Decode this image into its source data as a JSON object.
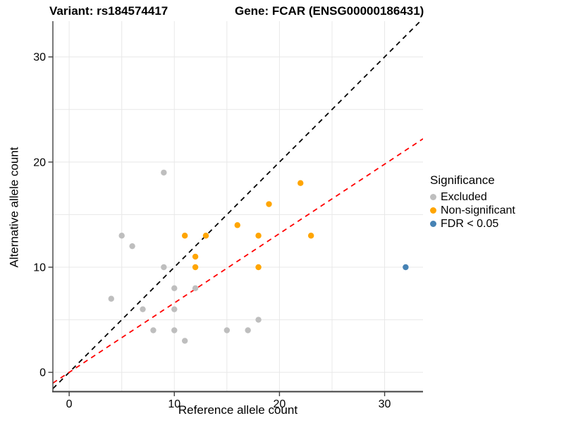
{
  "title": {
    "variant": "Variant: rs184574417",
    "gene": "Gene: FCAR (ENSG00000186431)"
  },
  "chart_data": {
    "type": "scatter",
    "xlabel": "Reference allele count",
    "ylabel": "Alternative allele count",
    "xlim": [
      -1.55,
      33.65
    ],
    "ylim": [
      -1.8,
      33.4
    ],
    "ticks": [
      0,
      10,
      20,
      30
    ],
    "grid_values": [
      0,
      5,
      10,
      15,
      20,
      25,
      30
    ],
    "grid": "on",
    "grid_color": "#e8e8e8",
    "axis_line_color": "#404040",
    "legend_position": "right",
    "legend_title": "Significance",
    "point_radius": 4.2,
    "series": [
      {
        "name": "Excluded",
        "color": "#BEBEBE",
        "points": [
          [
            4,
            7
          ],
          [
            5,
            13
          ],
          [
            6,
            12
          ],
          [
            7,
            6
          ],
          [
            8,
            4
          ],
          [
            9,
            10
          ],
          [
            9,
            19
          ],
          [
            10,
            4
          ],
          [
            10,
            6
          ],
          [
            10,
            8
          ],
          [
            11,
            3
          ],
          [
            12,
            8
          ],
          [
            15,
            4
          ],
          [
            17,
            4
          ],
          [
            18,
            5
          ]
        ]
      },
      {
        "name": "Non-significant",
        "color": "#FFA500",
        "points": [
          [
            11,
            13
          ],
          [
            12,
            10
          ],
          [
            12,
            11
          ],
          [
            13,
            13
          ],
          [
            16,
            14
          ],
          [
            18,
            10
          ],
          [
            18,
            13
          ],
          [
            19,
            16
          ],
          [
            22,
            18
          ],
          [
            23,
            13
          ]
        ]
      },
      {
        "name": "FDR < 0.05",
        "color": "#4682B4",
        "points": [
          [
            32,
            10
          ]
        ]
      }
    ],
    "lines": [
      {
        "name": "identity-line",
        "color": "#000000",
        "dashed": true,
        "slope": 1,
        "intercept": 0
      },
      {
        "name": "ratio-line",
        "color": "#FF0000",
        "dashed": true,
        "slope": 0.66,
        "intercept": 0
      }
    ]
  }
}
